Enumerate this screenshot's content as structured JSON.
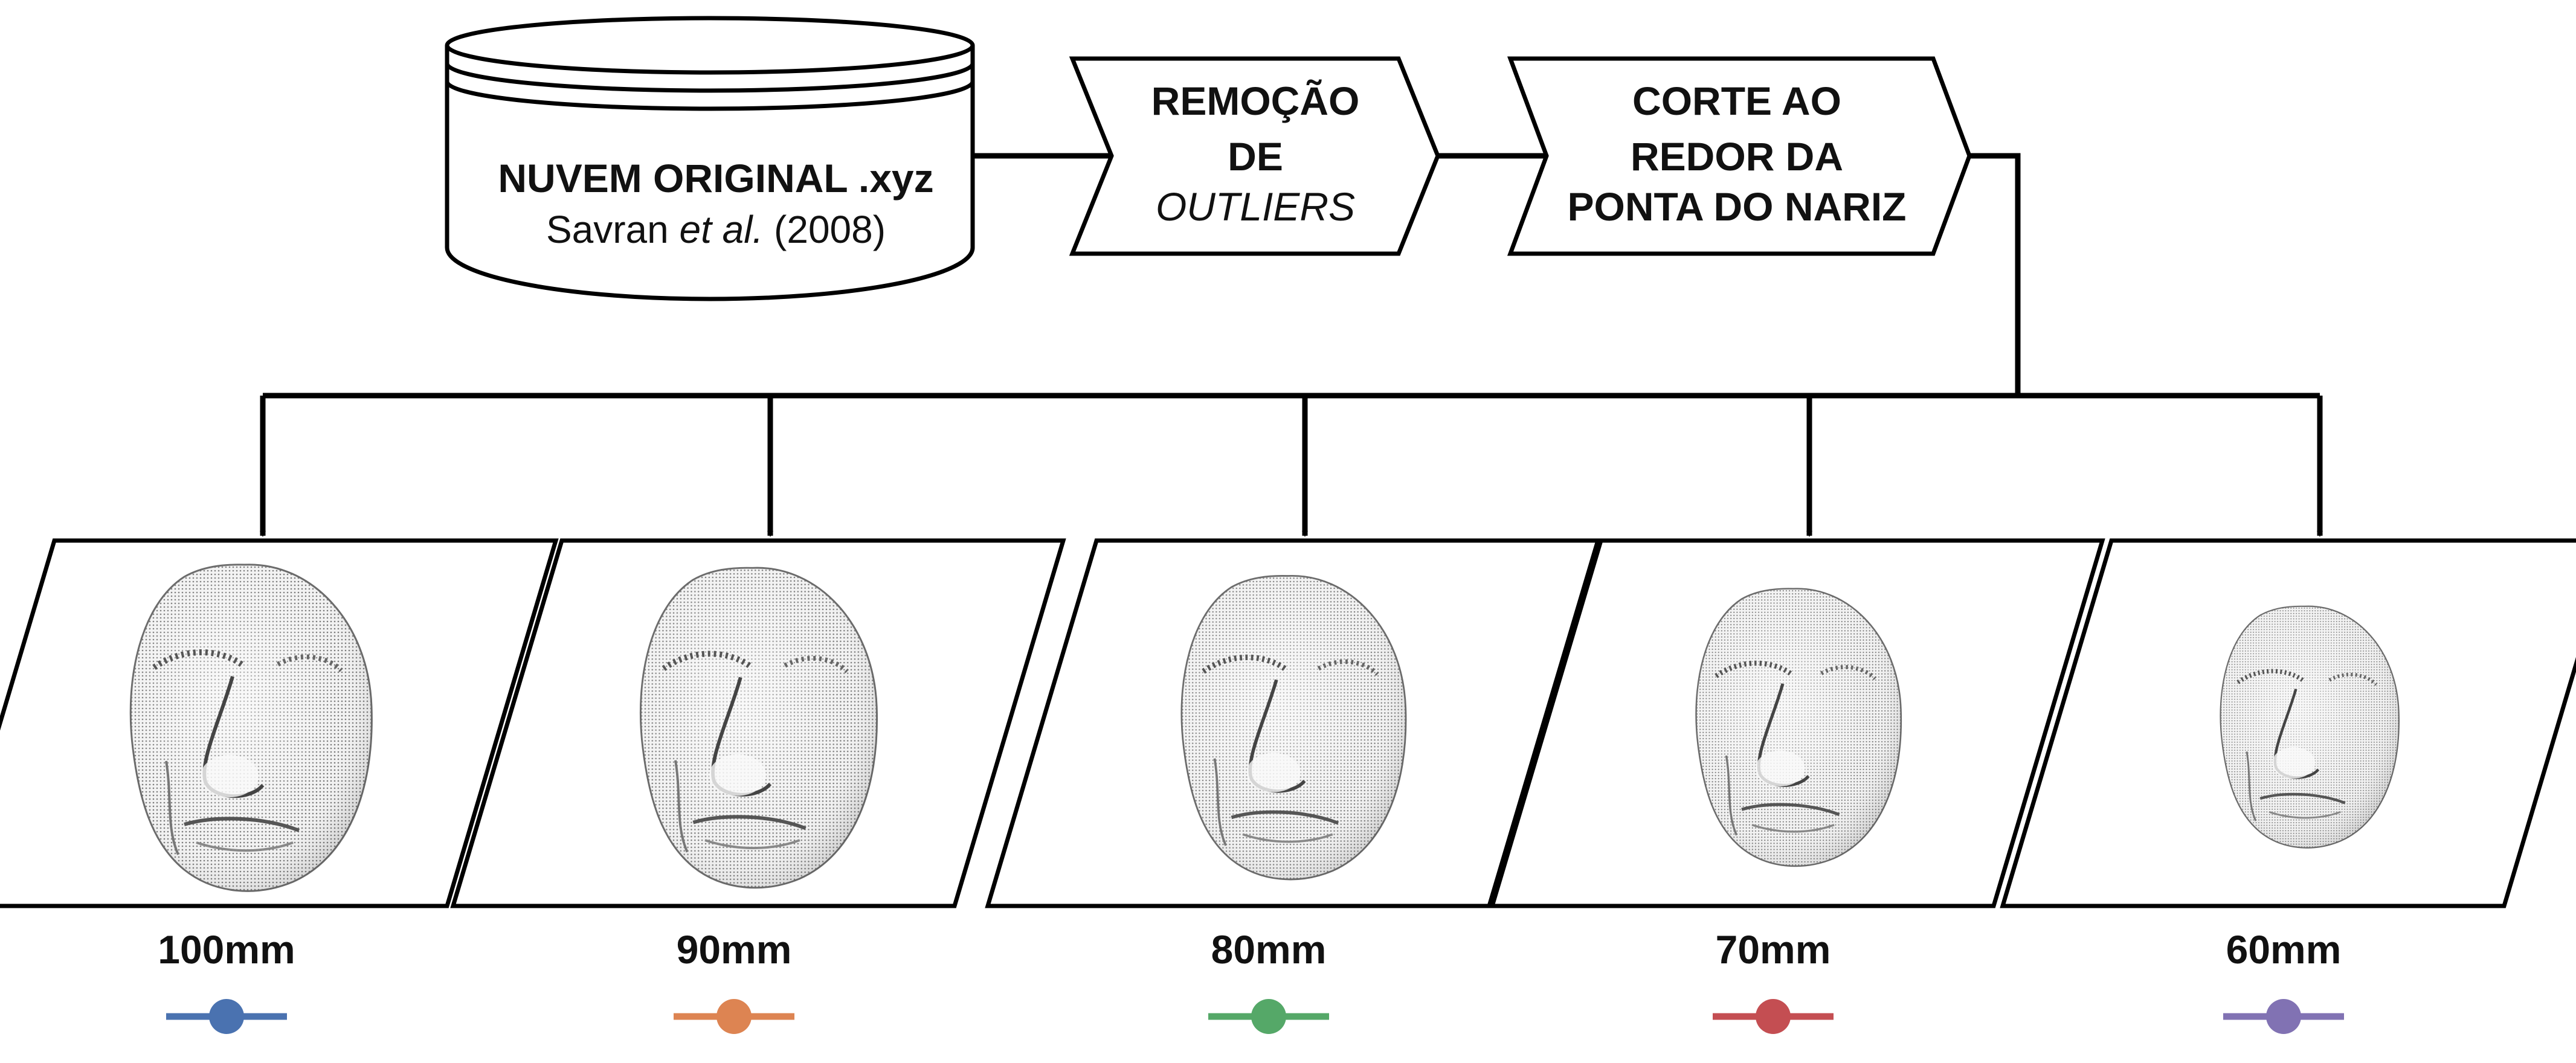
{
  "database": {
    "title": "NUVEM ORIGINAL .xyz",
    "citation_author": "Savran",
    "citation_etal": "et al.",
    "citation_year": "(2008)"
  },
  "step_outliers": {
    "line1": "REMOÇÃO",
    "line2": "DE",
    "line3": "OUTLIERS"
  },
  "step_crop": {
    "line1": "CORTE AO",
    "line2": "REDOR DA",
    "line3": "PONTA DO NARIZ"
  },
  "outputs": [
    {
      "label": "100mm",
      "color": "#4a72b0",
      "face_scale": 1.0
    },
    {
      "label": "90mm",
      "color": "#dd8452",
      "face_scale": 0.98
    },
    {
      "label": "80mm",
      "color": "#55a868",
      "face_scale": 0.93
    },
    {
      "label": "70mm",
      "color": "#c44e52",
      "face_scale": 0.85
    },
    {
      "label": "60mm",
      "color": "#8172b3",
      "face_scale": 0.74
    }
  ]
}
